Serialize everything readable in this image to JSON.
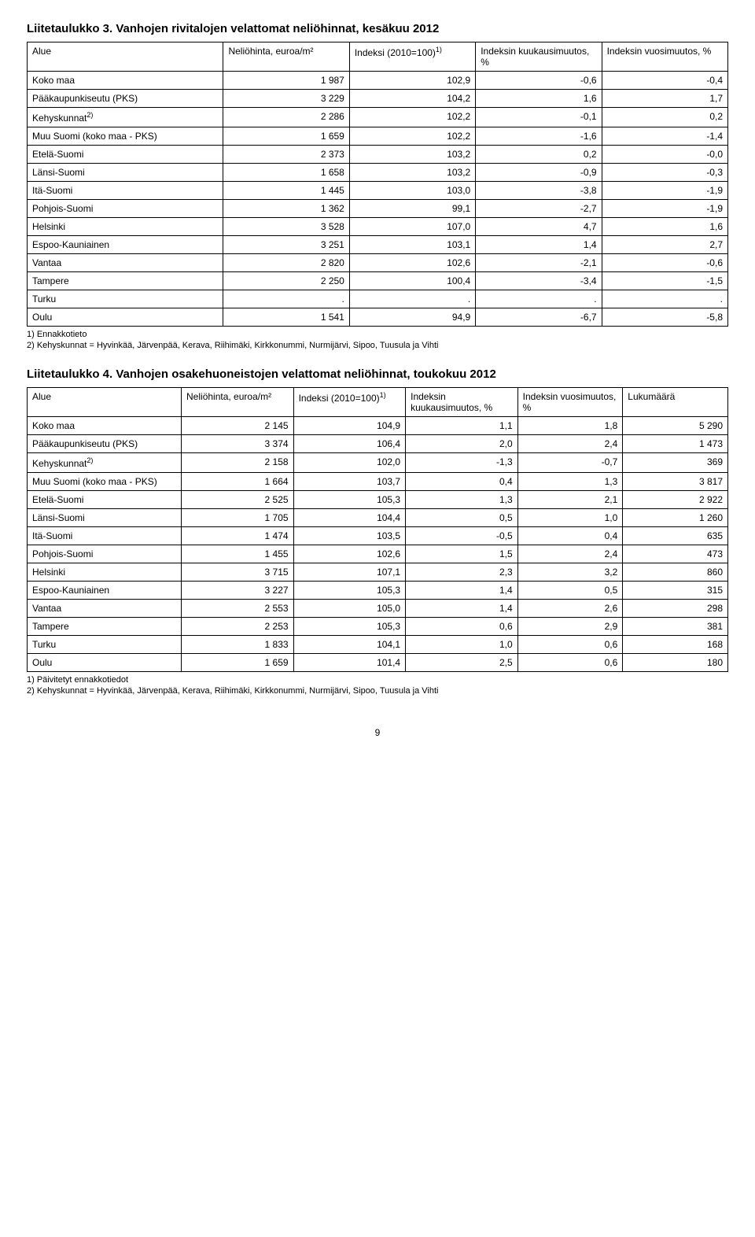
{
  "table3": {
    "title": "Liitetaulukko 3. Vanhojen rivitalojen velattomat neliöhinnat, kesäkuu 2012",
    "columns": {
      "c0": "Alue",
      "c1": "Neliöhinta, euroa/m²",
      "c2_pre": "Indeksi (2010=100)",
      "c2_sup": "1)",
      "c3": "Indeksin kuukausimuutos, %",
      "c4": "Indeksin vuosimuutos, %"
    },
    "rows": [
      {
        "label": "Koko maa",
        "c1": "1 987",
        "c2": "102,9",
        "c3": "-0,6",
        "c4": "-0,4",
        "sup": ""
      },
      {
        "label": "Pääkaupunkiseutu (PKS)",
        "c1": "3 229",
        "c2": "104,2",
        "c3": "1,6",
        "c4": "1,7",
        "sup": ""
      },
      {
        "label": "Kehyskunnat",
        "c1": "2 286",
        "c2": "102,2",
        "c3": "-0,1",
        "c4": "0,2",
        "sup": "2)"
      },
      {
        "label": "Muu Suomi (koko maa - PKS)",
        "c1": "1 659",
        "c2": "102,2",
        "c3": "-1,6",
        "c4": "-1,4",
        "sup": ""
      },
      {
        "label": "Etelä-Suomi",
        "c1": "2 373",
        "c2": "103,2",
        "c3": "0,2",
        "c4": "-0,0",
        "sup": ""
      },
      {
        "label": "Länsi-Suomi",
        "c1": "1 658",
        "c2": "103,2",
        "c3": "-0,9",
        "c4": "-0,3",
        "sup": ""
      },
      {
        "label": "Itä-Suomi",
        "c1": "1 445",
        "c2": "103,0",
        "c3": "-3,8",
        "c4": "-1,9",
        "sup": ""
      },
      {
        "label": "Pohjois-Suomi",
        "c1": "1 362",
        "c2": "99,1",
        "c3": "-2,7",
        "c4": "-1,9",
        "sup": ""
      },
      {
        "label": "Helsinki",
        "c1": "3 528",
        "c2": "107,0",
        "c3": "4,7",
        "c4": "1,6",
        "sup": ""
      },
      {
        "label": "Espoo-Kauniainen",
        "c1": "3 251",
        "c2": "103,1",
        "c3": "1,4",
        "c4": "2,7",
        "sup": ""
      },
      {
        "label": "Vantaa",
        "c1": "2 820",
        "c2": "102,6",
        "c3": "-2,1",
        "c4": "-0,6",
        "sup": ""
      },
      {
        "label": "Tampere",
        "c1": "2 250",
        "c2": "100,4",
        "c3": "-3,4",
        "c4": "-1,5",
        "sup": ""
      },
      {
        "label": "Turku",
        "c1": ".",
        "c2": ".",
        "c3": ".",
        "c4": ".",
        "sup": ""
      },
      {
        "label": "Oulu",
        "c1": "1 541",
        "c2": "94,9",
        "c3": "-6,7",
        "c4": "-5,8",
        "sup": ""
      }
    ],
    "footnotes": [
      "1) Ennakkotieto",
      "2) Kehyskunnat = Hyvinkää, Järvenpää, Kerava, Riihimäki, Kirkkonummi, Nurmijärvi, Sipoo, Tuusula ja Vihti"
    ]
  },
  "table4": {
    "title": "Liitetaulukko 4. Vanhojen osakehuoneistojen velattomat neliöhinnat, toukokuu 2012",
    "columns": {
      "c0": "Alue",
      "c1": "Neliöhinta, euroa/m²",
      "c2_pre": "Indeksi (2010=100)",
      "c2_sup": "1)",
      "c3": "Indeksin kuukausimuutos, %",
      "c4": "Indeksin vuosimuutos, %",
      "c5": "Lukumäärä"
    },
    "rows": [
      {
        "label": "Koko maa",
        "c1": "2 145",
        "c2": "104,9",
        "c3": "1,1",
        "c4": "1,8",
        "c5": "5 290",
        "sup": ""
      },
      {
        "label": "Pääkaupunkiseutu (PKS)",
        "c1": "3 374",
        "c2": "106,4",
        "c3": "2,0",
        "c4": "2,4",
        "c5": "1 473",
        "sup": ""
      },
      {
        "label": "Kehyskunnat",
        "c1": "2 158",
        "c2": "102,0",
        "c3": "-1,3",
        "c4": "-0,7",
        "c5": "369",
        "sup": "2)"
      },
      {
        "label": "Muu Suomi (koko maa - PKS)",
        "c1": "1 664",
        "c2": "103,7",
        "c3": "0,4",
        "c4": "1,3",
        "c5": "3 817",
        "sup": ""
      },
      {
        "label": "Etelä-Suomi",
        "c1": "2 525",
        "c2": "105,3",
        "c3": "1,3",
        "c4": "2,1",
        "c5": "2 922",
        "sup": ""
      },
      {
        "label": "Länsi-Suomi",
        "c1": "1 705",
        "c2": "104,4",
        "c3": "0,5",
        "c4": "1,0",
        "c5": "1 260",
        "sup": ""
      },
      {
        "label": "Itä-Suomi",
        "c1": "1 474",
        "c2": "103,5",
        "c3": "-0,5",
        "c4": "0,4",
        "c5": "635",
        "sup": ""
      },
      {
        "label": "Pohjois-Suomi",
        "c1": "1 455",
        "c2": "102,6",
        "c3": "1,5",
        "c4": "2,4",
        "c5": "473",
        "sup": ""
      },
      {
        "label": "Helsinki",
        "c1": "3 715",
        "c2": "107,1",
        "c3": "2,3",
        "c4": "3,2",
        "c5": "860",
        "sup": ""
      },
      {
        "label": "Espoo-Kauniainen",
        "c1": "3 227",
        "c2": "105,3",
        "c3": "1,4",
        "c4": "0,5",
        "c5": "315",
        "sup": ""
      },
      {
        "label": "Vantaa",
        "c1": "2 553",
        "c2": "105,0",
        "c3": "1,4",
        "c4": "2,6",
        "c5": "298",
        "sup": ""
      },
      {
        "label": "Tampere",
        "c1": "2 253",
        "c2": "105,3",
        "c3": "0,6",
        "c4": "2,9",
        "c5": "381",
        "sup": ""
      },
      {
        "label": "Turku",
        "c1": "1 833",
        "c2": "104,1",
        "c3": "1,0",
        "c4": "0,6",
        "c5": "168",
        "sup": ""
      },
      {
        "label": "Oulu",
        "c1": "1 659",
        "c2": "101,4",
        "c3": "2,5",
        "c4": "0,6",
        "c5": "180",
        "sup": ""
      }
    ],
    "footnotes": [
      "1) Päivitetyt ennakkotiedot",
      "2) Kehyskunnat = Hyvinkää, Järvenpää, Kerava, Riihimäki, Kirkkonummi, Nurmijärvi, Sipoo, Tuusula ja Vihti"
    ]
  },
  "page_number": "9"
}
